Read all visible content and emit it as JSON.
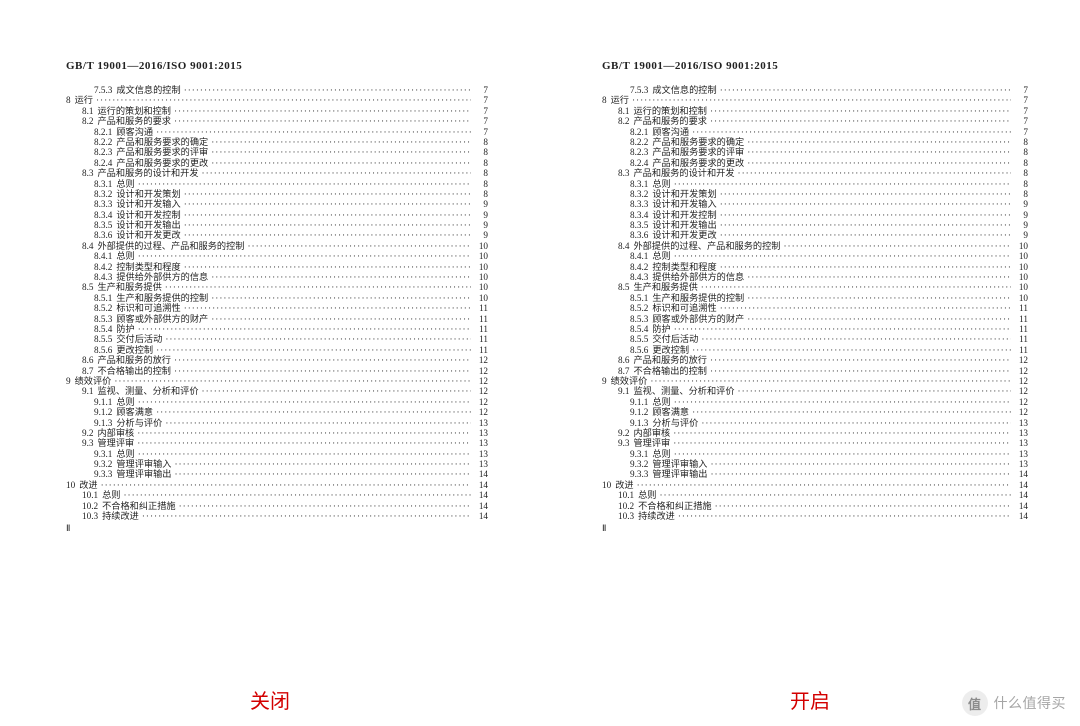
{
  "header": "GB/T 19001—2016/ISO 9001:2015",
  "caption_left": "关闭",
  "caption_right": "开启",
  "caption_left_color": "#d30000",
  "caption_right_color": "#d30000",
  "watermark_badge": "值",
  "watermark_text": "什么值得买",
  "footer_mark": "Ⅱ",
  "toc": [
    {
      "num": "7.5.3",
      "title": "成文信息的控制",
      "page": "7",
      "indent": 3
    },
    {
      "num": "8",
      "title": "运行",
      "page": "7",
      "indent": 0
    },
    {
      "num": "8.1",
      "title": "运行的策划和控制",
      "page": "7",
      "indent": 2
    },
    {
      "num": "8.2",
      "title": "产品和服务的要求",
      "page": "7",
      "indent": 2
    },
    {
      "num": "8.2.1",
      "title": "顾客沟通",
      "page": "7",
      "indent": 3
    },
    {
      "num": "8.2.2",
      "title": "产品和服务要求的确定",
      "page": "8",
      "indent": 3
    },
    {
      "num": "8.2.3",
      "title": "产品和服务要求的评审",
      "page": "8",
      "indent": 3
    },
    {
      "num": "8.2.4",
      "title": "产品和服务要求的更改",
      "page": "8",
      "indent": 3
    },
    {
      "num": "8.3",
      "title": "产品和服务的设计和开发",
      "page": "8",
      "indent": 2
    },
    {
      "num": "8.3.1",
      "title": "总则",
      "page": "8",
      "indent": 3
    },
    {
      "num": "8.3.2",
      "title": "设计和开发策划",
      "page": "8",
      "indent": 3
    },
    {
      "num": "8.3.3",
      "title": "设计和开发输入",
      "page": "9",
      "indent": 3
    },
    {
      "num": "8.3.4",
      "title": "设计和开发控制",
      "page": "9",
      "indent": 3
    },
    {
      "num": "8.3.5",
      "title": "设计和开发输出",
      "page": "9",
      "indent": 3
    },
    {
      "num": "8.3.6",
      "title": "设计和开发更改",
      "page": "9",
      "indent": 3
    },
    {
      "num": "8.4",
      "title": "外部提供的过程、产品和服务的控制",
      "page": "10",
      "indent": 2
    },
    {
      "num": "8.4.1",
      "title": "总则",
      "page": "10",
      "indent": 3
    },
    {
      "num": "8.4.2",
      "title": "控制类型和程度",
      "page": "10",
      "indent": 3
    },
    {
      "num": "8.4.3",
      "title": "提供给外部供方的信息",
      "page": "10",
      "indent": 3
    },
    {
      "num": "8.5",
      "title": "生产和服务提供",
      "page": "10",
      "indent": 2
    },
    {
      "num": "8.5.1",
      "title": "生产和服务提供的控制",
      "page": "10",
      "indent": 3
    },
    {
      "num": "8.5.2",
      "title": "标识和可追溯性",
      "page": "11",
      "indent": 3
    },
    {
      "num": "8.5.3",
      "title": "顾客或外部供方的财产",
      "page": "11",
      "indent": 3
    },
    {
      "num": "8.5.4",
      "title": "防护",
      "page": "11",
      "indent": 3
    },
    {
      "num": "8.5.5",
      "title": "交付后活动",
      "page": "11",
      "indent": 3
    },
    {
      "num": "8.5.6",
      "title": "更改控制",
      "page": "11",
      "indent": 3
    },
    {
      "num": "8.6",
      "title": "产品和服务的放行",
      "page": "12",
      "indent": 2
    },
    {
      "num": "8.7",
      "title": "不合格输出的控制",
      "page": "12",
      "indent": 2
    },
    {
      "num": "9",
      "title": "绩效评价",
      "page": "12",
      "indent": 0
    },
    {
      "num": "9.1",
      "title": "监视、测量、分析和评价",
      "page": "12",
      "indent": 2
    },
    {
      "num": "9.1.1",
      "title": "总则",
      "page": "12",
      "indent": 3
    },
    {
      "num": "9.1.2",
      "title": "顾客满意",
      "page": "12",
      "indent": 3
    },
    {
      "num": "9.1.3",
      "title": "分析与评价",
      "page": "13",
      "indent": 3
    },
    {
      "num": "9.2",
      "title": "内部审核",
      "page": "13",
      "indent": 2
    },
    {
      "num": "9.3",
      "title": "管理评审",
      "page": "13",
      "indent": 2
    },
    {
      "num": "9.3.1",
      "title": "总则",
      "page": "13",
      "indent": 3
    },
    {
      "num": "9.3.2",
      "title": "管理评审输入",
      "page": "13",
      "indent": 3
    },
    {
      "num": "9.3.3",
      "title": "管理评审输出",
      "page": "14",
      "indent": 3
    },
    {
      "num": "10",
      "title": "改进",
      "page": "14",
      "indent": 0
    },
    {
      "num": "10.1",
      "title": "总则",
      "page": "14",
      "indent": 2
    },
    {
      "num": "10.2",
      "title": "不合格和纠正措施",
      "page": "14",
      "indent": 2
    },
    {
      "num": "10.3",
      "title": "持续改进",
      "page": "14",
      "indent": 2
    }
  ]
}
